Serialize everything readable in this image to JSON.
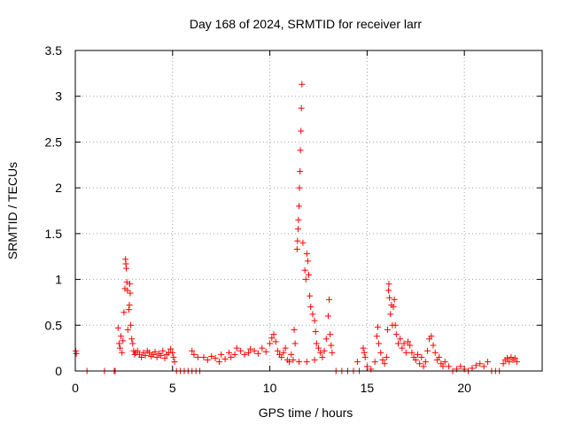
{
  "chart_data": {
    "type": "scatter",
    "title": "Day 168 of 2024, SRMTID for receiver larr",
    "xlabel": "GPS time / hours",
    "ylabel": "SRMTID / TECUs",
    "xlim": [
      0,
      24
    ],
    "ylim": [
      0,
      3.5
    ],
    "grid": true,
    "marker": "+",
    "marker_color": "#ff0000",
    "x_ticks": [
      0,
      5,
      10,
      15,
      20
    ],
    "x_tick_labels": [
      "0",
      "5",
      "10",
      "15",
      "20"
    ],
    "y_ticks": [
      0,
      0.5,
      1,
      1.5,
      2,
      2.5,
      3,
      3.5
    ],
    "y_tick_labels": [
      "0",
      "0.5",
      "1",
      "1.5",
      "2",
      "2.5",
      "3",
      "3.5"
    ],
    "series": [
      {
        "name": "SRMTID",
        "points": [
          [
            0.02,
            0.22
          ],
          [
            0.05,
            0.19
          ],
          [
            0.6,
            0.0
          ],
          [
            1.5,
            0.0
          ],
          [
            2.0,
            0.0
          ],
          [
            2.05,
            0.0
          ],
          [
            2.2,
            0.47
          ],
          [
            2.25,
            0.3
          ],
          [
            2.3,
            0.25
          ],
          [
            2.35,
            0.38
          ],
          [
            2.4,
            0.2
          ],
          [
            2.45,
            0.33
          ],
          [
            2.5,
            0.64
          ],
          [
            2.55,
            0.9
          ],
          [
            2.58,
            1.22
          ],
          [
            2.6,
            1.17
          ],
          [
            2.62,
            1.12
          ],
          [
            2.65,
            0.97
          ],
          [
            2.68,
            0.88
          ],
          [
            2.7,
            0.45
          ],
          [
            2.75,
            0.67
          ],
          [
            2.78,
            0.72
          ],
          [
            2.8,
            0.95
          ],
          [
            2.82,
            0.85
          ],
          [
            2.85,
            0.5
          ],
          [
            2.9,
            0.35
          ],
          [
            2.95,
            0.3
          ],
          [
            3.0,
            0.22
          ],
          [
            3.05,
            0.18
          ],
          [
            3.1,
            0.2
          ],
          [
            3.2,
            0.22
          ],
          [
            3.3,
            0.18
          ],
          [
            3.4,
            0.15
          ],
          [
            3.5,
            0.2
          ],
          [
            3.6,
            0.17
          ],
          [
            3.7,
            0.22
          ],
          [
            3.8,
            0.2
          ],
          [
            3.9,
            0.16
          ],
          [
            4.0,
            0.18
          ],
          [
            4.1,
            0.21
          ],
          [
            4.2,
            0.15
          ],
          [
            4.3,
            0.19
          ],
          [
            4.4,
            0.17
          ],
          [
            4.5,
            0.22
          ],
          [
            4.6,
            0.14
          ],
          [
            4.7,
            0.18
          ],
          [
            4.8,
            0.2
          ],
          [
            4.9,
            0.24
          ],
          [
            5.0,
            0.2
          ],
          [
            5.05,
            0.15
          ],
          [
            5.1,
            0.1
          ],
          [
            5.2,
            0.0
          ],
          [
            5.4,
            0.0
          ],
          [
            5.6,
            0.0
          ],
          [
            5.8,
            0.0
          ],
          [
            6.0,
            0.0
          ],
          [
            6.2,
            0.0
          ],
          [
            6.4,
            0.0
          ],
          [
            6.0,
            0.22
          ],
          [
            6.1,
            0.18
          ],
          [
            6.3,
            0.15
          ],
          [
            6.6,
            0.15
          ],
          [
            6.8,
            0.12
          ],
          [
            7.0,
            0.16
          ],
          [
            7.2,
            0.14
          ],
          [
            7.4,
            0.1
          ],
          [
            7.5,
            0.18
          ],
          [
            7.7,
            0.13
          ],
          [
            7.9,
            0.2
          ],
          [
            8.0,
            0.15
          ],
          [
            8.2,
            0.18
          ],
          [
            8.3,
            0.25
          ],
          [
            8.5,
            0.22
          ],
          [
            8.7,
            0.18
          ],
          [
            8.9,
            0.2
          ],
          [
            9.0,
            0.24
          ],
          [
            9.2,
            0.22
          ],
          [
            9.4,
            0.19
          ],
          [
            9.6,
            0.25
          ],
          [
            9.8,
            0.21
          ],
          [
            10.0,
            0.3
          ],
          [
            10.1,
            0.36
          ],
          [
            10.2,
            0.4
          ],
          [
            10.3,
            0.32
          ],
          [
            10.4,
            0.22
          ],
          [
            10.5,
            0.18
          ],
          [
            10.6,
            0.15
          ],
          [
            10.7,
            0.2
          ],
          [
            10.8,
            0.25
          ],
          [
            10.9,
            0.12
          ],
          [
            11.0,
            0.1
          ],
          [
            11.1,
            0.18
          ],
          [
            11.2,
            0.12
          ],
          [
            11.25,
            0.45
          ],
          [
            11.3,
            0.3
          ],
          [
            11.4,
            1.33
          ],
          [
            11.42,
            1.42
          ],
          [
            11.45,
            1.55
          ],
          [
            11.47,
            1.65
          ],
          [
            11.5,
            1.8
          ],
          [
            11.52,
            2.0
          ],
          [
            11.55,
            2.18
          ],
          [
            11.57,
            2.41
          ],
          [
            11.6,
            2.62
          ],
          [
            11.62,
            2.87
          ],
          [
            11.65,
            3.13
          ],
          [
            11.7,
            1.4
          ],
          [
            11.8,
            1.1
          ],
          [
            11.85,
            1.0
          ],
          [
            11.9,
            1.28
          ],
          [
            11.95,
            1.2
          ],
          [
            12.0,
            1.05
          ],
          [
            12.05,
            0.82
          ],
          [
            12.1,
            0.7
          ],
          [
            12.2,
            0.62
          ],
          [
            12.3,
            0.55
          ],
          [
            12.35,
            0.43
          ],
          [
            12.4,
            0.3
          ],
          [
            12.5,
            0.25
          ],
          [
            12.6,
            0.2
          ],
          [
            12.7,
            0.15
          ],
          [
            12.8,
            0.22
          ],
          [
            12.9,
            0.35
          ],
          [
            13.0,
            0.6
          ],
          [
            13.05,
            0.78
          ],
          [
            13.1,
            0.4
          ],
          [
            13.15,
            0.28
          ],
          [
            13.2,
            0.2
          ],
          [
            11.5,
            0.1
          ],
          [
            11.9,
            0.1
          ],
          [
            12.3,
            0.12
          ],
          [
            13.4,
            0.0
          ],
          [
            13.7,
            0.0
          ],
          [
            14.0,
            0.0
          ],
          [
            14.3,
            0.0
          ],
          [
            14.5,
            0.1
          ],
          [
            14.6,
            0.0
          ],
          [
            14.8,
            0.25
          ],
          [
            14.85,
            0.2
          ],
          [
            14.9,
            0.15
          ],
          [
            15.0,
            0.05
          ],
          [
            15.2,
            0.02
          ],
          [
            15.4,
            0.1
          ],
          [
            15.5,
            0.38
          ],
          [
            15.55,
            0.48
          ],
          [
            15.6,
            0.3
          ],
          [
            15.7,
            0.2
          ],
          [
            15.8,
            0.12
          ],
          [
            15.9,
            0.08
          ],
          [
            16.0,
            0.15
          ],
          [
            16.05,
            0.45
          ],
          [
            16.1,
            0.88
          ],
          [
            16.12,
            0.95
          ],
          [
            16.15,
            0.8
          ],
          [
            16.2,
            0.62
          ],
          [
            16.25,
            0.72
          ],
          [
            16.3,
            0.5
          ],
          [
            16.35,
            0.7
          ],
          [
            16.4,
            0.78
          ],
          [
            16.45,
            0.5
          ],
          [
            16.5,
            0.4
          ],
          [
            16.6,
            0.3
          ],
          [
            16.7,
            0.35
          ],
          [
            16.8,
            0.25
          ],
          [
            16.9,
            0.3
          ],
          [
            17.0,
            0.2
          ],
          [
            17.1,
            0.32
          ],
          [
            17.2,
            0.28
          ],
          [
            17.3,
            0.2
          ],
          [
            17.4,
            0.15
          ],
          [
            17.5,
            0.12
          ],
          [
            17.6,
            0.18
          ],
          [
            17.7,
            0.08
          ],
          [
            17.8,
            0.15
          ],
          [
            17.9,
            0.05
          ],
          [
            18.0,
            0.1
          ],
          [
            18.1,
            0.22
          ],
          [
            18.2,
            0.35
          ],
          [
            18.3,
            0.38
          ],
          [
            18.4,
            0.28
          ],
          [
            18.5,
            0.2
          ],
          [
            18.6,
            0.12
          ],
          [
            18.7,
            0.15
          ],
          [
            18.8,
            0.08
          ],
          [
            18.9,
            0.05
          ],
          [
            19.0,
            0.1
          ],
          [
            19.2,
            0.05
          ],
          [
            19.4,
            0.0
          ],
          [
            19.6,
            0.02
          ],
          [
            19.8,
            0.05
          ],
          [
            20.0,
            0.02
          ],
          [
            20.2,
            0.0
          ],
          [
            20.4,
            0.03
          ],
          [
            20.6,
            0.06
          ],
          [
            20.8,
            0.08
          ],
          [
            21.0,
            0.05
          ],
          [
            21.2,
            0.1
          ],
          [
            21.4,
            0.0
          ],
          [
            21.6,
            0.0
          ],
          [
            21.8,
            0.0
          ],
          [
            22.0,
            0.08
          ],
          [
            22.1,
            0.12
          ],
          [
            22.2,
            0.14
          ],
          [
            22.3,
            0.1
          ],
          [
            22.4,
            0.15
          ],
          [
            22.5,
            0.12
          ],
          [
            22.6,
            0.14
          ],
          [
            22.7,
            0.1
          ]
        ]
      }
    ]
  }
}
